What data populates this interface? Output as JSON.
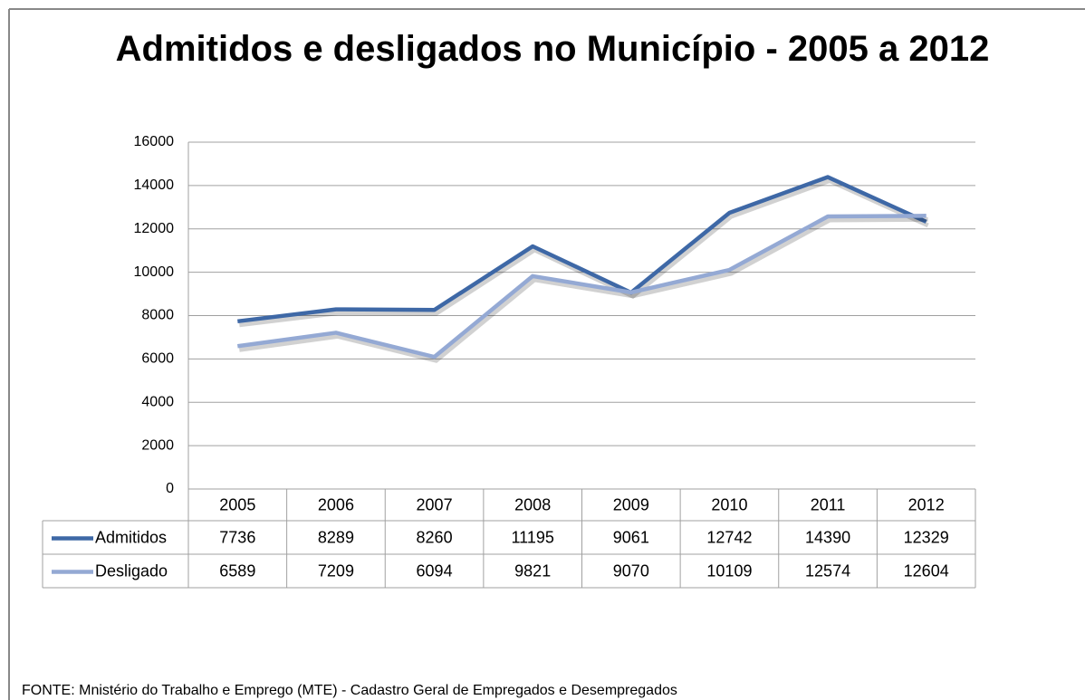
{
  "chart_data": {
    "type": "line",
    "title": "Admitidos e desligados no Município - 2005 a 2012",
    "categories": [
      "2005",
      "2006",
      "2007",
      "2008",
      "2009",
      "2010",
      "2011",
      "2012"
    ],
    "series": [
      {
        "name": "Admitidos",
        "color": "#3e68a6",
        "values": [
          7736,
          8289,
          8260,
          11195,
          9061,
          12742,
          14390,
          12329
        ]
      },
      {
        "name": "Desligado",
        "color": "#94a9d4",
        "values": [
          6589,
          7209,
          6094,
          9821,
          9070,
          10109,
          12574,
          12604
        ]
      }
    ],
    "ylim": [
      0,
      16000
    ],
    "yticks": [
      0,
      2000,
      4000,
      6000,
      8000,
      10000,
      12000,
      14000,
      16000
    ],
    "grid": true,
    "source": "FONTE: Mnistério do Trabalho e Emprego (MTE) - Cadastro Geral de Empregados e Desempregados"
  }
}
